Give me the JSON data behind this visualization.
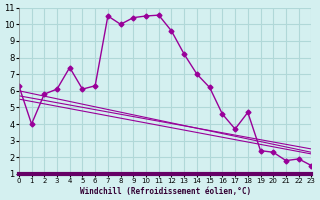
{
  "xlabel": "Windchill (Refroidissement éolien,°C)",
  "background_color": "#d4f0f0",
  "grid_color": "#b0d8d8",
  "line_color": "#990099",
  "xlim": [
    0,
    23
  ],
  "ylim": [
    1,
    11
  ],
  "xticks": [
    0,
    1,
    2,
    3,
    4,
    5,
    6,
    7,
    8,
    9,
    10,
    11,
    12,
    13,
    14,
    15,
    16,
    17,
    18,
    19,
    20,
    21,
    22,
    23
  ],
  "yticks": [
    1,
    2,
    3,
    4,
    5,
    6,
    7,
    8,
    9,
    10,
    11
  ],
  "main_line_x": [
    0,
    1,
    2,
    3,
    4,
    5,
    6,
    7,
    8,
    9,
    10,
    11,
    12,
    13,
    14,
    15,
    16,
    17,
    18,
    19,
    20,
    21,
    22,
    23
  ],
  "main_line_y": [
    6.3,
    4.0,
    5.8,
    6.1,
    7.4,
    6.1,
    6.3,
    10.5,
    10.0,
    10.4,
    10.5,
    10.55,
    9.6,
    8.2,
    7.0,
    6.2,
    4.6,
    3.7,
    4.7,
    2.4,
    2.3,
    1.8,
    1.9,
    1.5
  ],
  "trend_line1_x": [
    0,
    23
  ],
  "trend_line1_y": [
    6.0,
    2.3
  ],
  "trend_line2_x": [
    0,
    23
  ],
  "trend_line2_y": [
    5.7,
    2.5
  ],
  "trend_line3_x": [
    0,
    23
  ],
  "trend_line3_y": [
    5.5,
    2.2
  ]
}
